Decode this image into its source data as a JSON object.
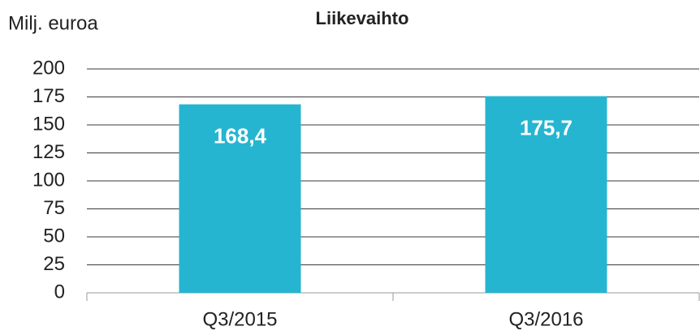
{
  "chart_data": {
    "type": "bar",
    "title": "Liikevaihto",
    "y_axis_label": "Milj. euroa",
    "categories": [
      "Q3/2015",
      "Q3/2016"
    ],
    "values": [
      168.4,
      175.7
    ],
    "value_labels": [
      "168,4",
      "175,7"
    ],
    "color": "#26b5d0",
    "ylim": [
      0,
      200
    ],
    "yticks": [
      0,
      25,
      50,
      75,
      100,
      125,
      150,
      175,
      200
    ],
    "grid": true
  }
}
